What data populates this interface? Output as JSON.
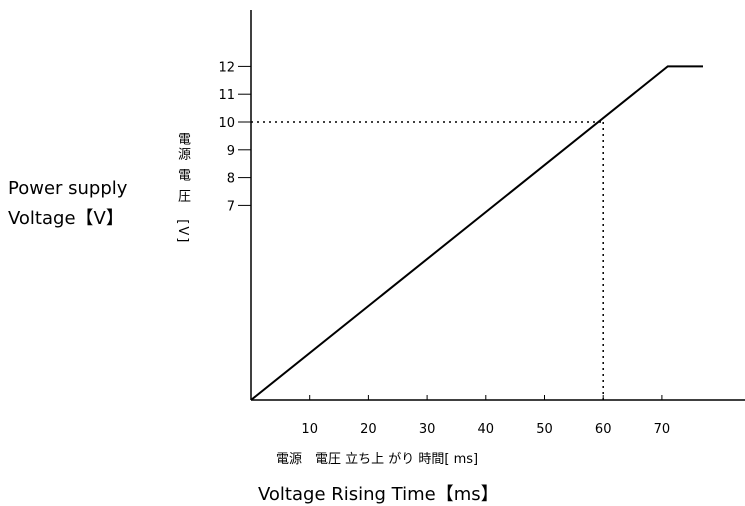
{
  "chart_data": {
    "type": "line",
    "title": "",
    "xlabel_jp": "電源　電圧 立ち上 がり 時間[ ms]",
    "xlabel_en": "Voltage Rising Time【ms】",
    "ylabel_jp": "電源 電 圧　[V]",
    "ylabel_en_line1": "Power supply",
    "ylabel_en_line2": "Voltage【V】",
    "xlim": [
      0,
      77
    ],
    "ylim": [
      0,
      14
    ],
    "x_ticks": [
      10,
      20,
      30,
      40,
      50,
      60,
      70
    ],
    "y_ticks": [
      7,
      8,
      9,
      10,
      11,
      12
    ],
    "series": [
      {
        "x": [
          0,
          71,
          77
        ],
        "y": [
          0,
          12,
          12
        ]
      }
    ],
    "reference": {
      "x": 60,
      "y": 10,
      "style": "dotted"
    },
    "grid": false
  }
}
